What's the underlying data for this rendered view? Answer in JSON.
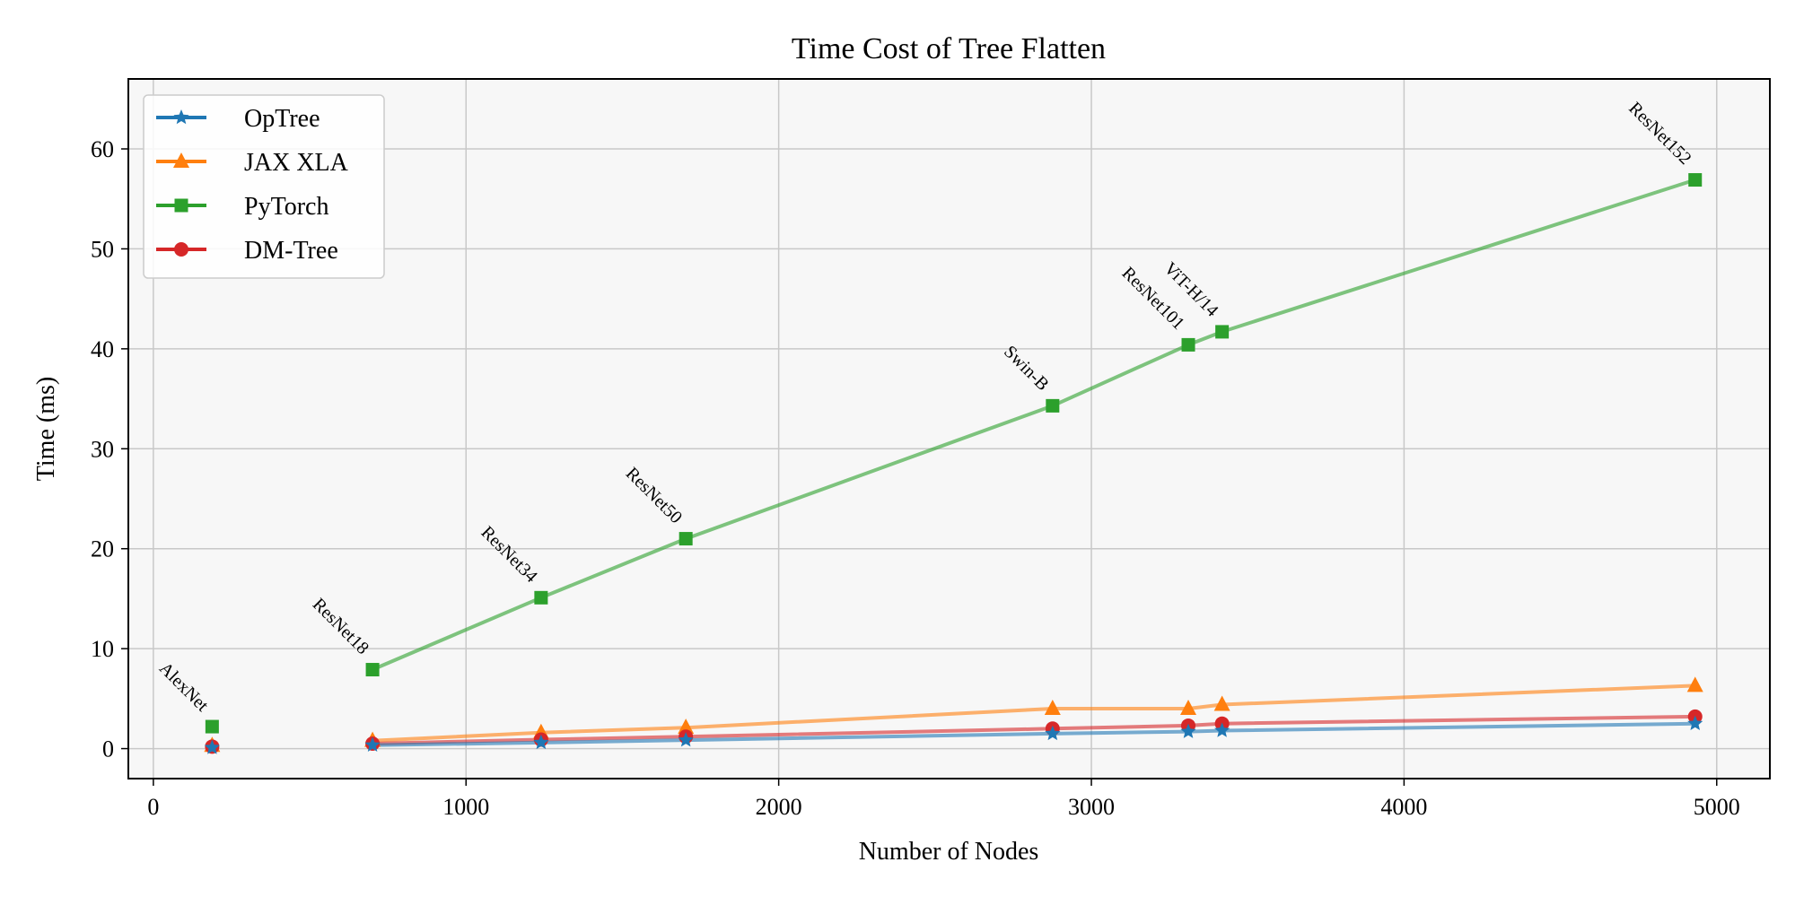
{
  "chart_data": {
    "type": "line",
    "title": "Time Cost of Tree Flatten",
    "xlabel": "Number of Nodes",
    "ylabel": "Time (ms)",
    "xlim": [
      -80,
      5170
    ],
    "ylim": [
      -3,
      67
    ],
    "xticks": [
      0,
      1000,
      2000,
      3000,
      4000,
      5000
    ],
    "yticks": [
      0,
      10,
      20,
      30,
      40,
      50,
      60
    ],
    "grid": true,
    "legend_position": "top-left",
    "x": [
      188,
      701,
      1240,
      1703,
      2876,
      3310,
      3418,
      4931
    ],
    "point_labels": [
      {
        "text": "AlexNet",
        "index": 0
      },
      {
        "text": "ResNet18",
        "index": 1
      },
      {
        "text": "ResNet34",
        "index": 2
      },
      {
        "text": "ResNet50",
        "index": 3
      },
      {
        "text": "Swin-B",
        "index": 4
      },
      {
        "text": "ResNet101",
        "index": 5
      },
      {
        "text": "ViT-H/14",
        "index": 6
      },
      {
        "text": "ResNet152",
        "index": 7
      }
    ],
    "series": [
      {
        "name": "OpTree",
        "color": "#1f77b4",
        "marker": "star",
        "values": [
          0.1,
          0.35,
          0.6,
          0.85,
          1.5,
          1.7,
          1.8,
          2.5
        ],
        "line_from_index": 1
      },
      {
        "name": "JAX XLA",
        "color": "#ff7f0e",
        "marker": "triangle",
        "values": [
          0.3,
          0.8,
          1.6,
          2.1,
          4.0,
          4.0,
          4.4,
          6.3
        ],
        "line_from_index": 1
      },
      {
        "name": "PyTorch",
        "color": "#2ca02c",
        "marker": "square",
        "values": [
          2.2,
          7.9,
          15.1,
          21.0,
          34.3,
          40.4,
          41.7,
          56.9
        ],
        "line_from_index": 1
      },
      {
        "name": "DM-Tree",
        "color": "#d62728",
        "marker": "circle",
        "values": [
          0.2,
          0.5,
          0.9,
          1.2,
          2.0,
          2.3,
          2.5,
          3.2
        ],
        "line_from_index": 1
      }
    ]
  }
}
